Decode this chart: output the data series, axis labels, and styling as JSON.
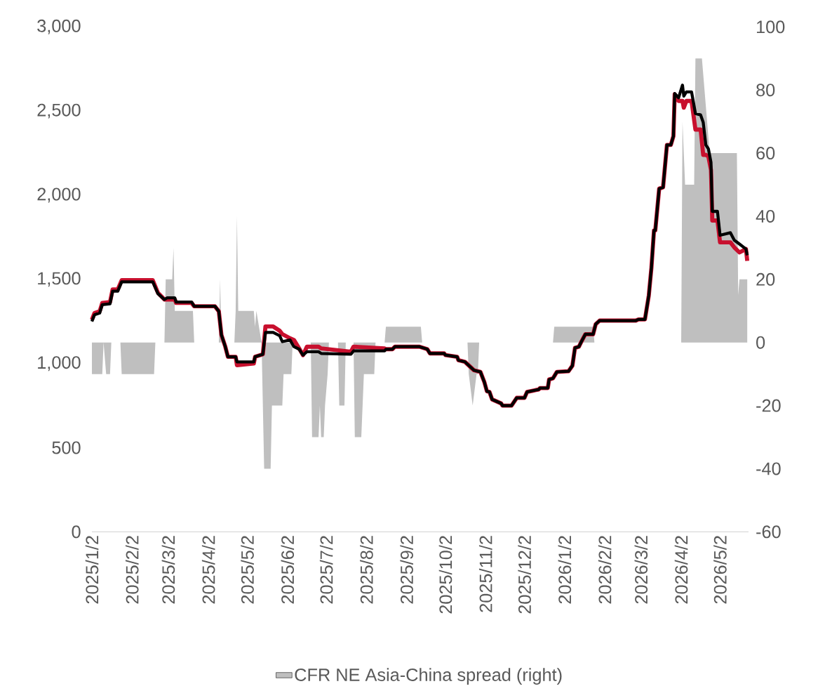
{
  "chart_data": {
    "type": "line",
    "legend": "bottom",
    "xlim": [
      "2025-01-02",
      "2026-05-24"
    ],
    "xticks": [
      {
        "value": "2025-01-02",
        "label": "2025/1/2"
      },
      {
        "value": "2025-02-02",
        "label": "2025/2/2"
      },
      {
        "value": "2025-03-02",
        "label": "2025/3/2"
      },
      {
        "value": "2025-04-02",
        "label": "2025/4/2"
      },
      {
        "value": "2025-05-02",
        "label": "2025/5/2"
      },
      {
        "value": "2025-06-02",
        "label": "2025/6/2"
      },
      {
        "value": "2025-07-02",
        "label": "2025/7/2"
      },
      {
        "value": "2025-08-02",
        "label": "2025/8/2"
      },
      {
        "value": "2025-09-02",
        "label": "2025/9/2"
      },
      {
        "value": "2025-10-02",
        "label": "2025/10/2"
      },
      {
        "value": "2025-11-02",
        "label": "2025/11/2"
      },
      {
        "value": "2025-12-02",
        "label": "2025/12/2"
      },
      {
        "value": "2026-01-02",
        "label": "2026/1/2"
      },
      {
        "value": "2026-02-02",
        "label": "2026/2/2"
      },
      {
        "value": "2026-03-02",
        "label": "2026/3/2"
      },
      {
        "value": "2026-04-02",
        "label": "2026/4/2"
      },
      {
        "value": "2026-05-02",
        "label": "2026/5/2"
      }
    ],
    "ylim": [
      0,
      3000
    ],
    "yticks": [
      0,
      500,
      {
        "value": 1000,
        "label": "1,000"
      },
      {
        "value": 1500,
        "label": "1,500"
      },
      {
        "value": 2000,
        "label": "2,000"
      },
      {
        "value": 2500,
        "label": "2,500"
      },
      {
        "value": 3000,
        "label": "3,000"
      }
    ],
    "y2lim": [
      -60,
      100
    ],
    "y2ticks": [
      -60,
      -40,
      -20,
      0,
      20,
      40,
      60,
      80,
      100
    ],
    "x": [
      "2025-01-02",
      "2025-01-04",
      "2025-01-08",
      "2025-01-10",
      "2025-01-16",
      "2025-01-18",
      "2025-01-22",
      "2025-01-25",
      "2025-02-18",
      "2025-02-22",
      "2025-02-27",
      "2025-03-01",
      "2025-03-07",
      "2025-03-08",
      "2025-03-20",
      "2025-03-22",
      "2025-04-07",
      "2025-04-10",
      "2025-04-12",
      "2025-04-15",
      "2025-04-17",
      "2025-04-23",
      "2025-04-24",
      "2025-05-07",
      "2025-05-08",
      "2025-05-14",
      "2025-05-16",
      "2025-05-22",
      "2025-05-27",
      "2025-05-29",
      "2025-06-04",
      "2025-06-07",
      "2025-06-11",
      "2025-06-14",
      "2025-06-17",
      "2025-06-26",
      "2025-06-28",
      "2025-07-21",
      "2025-07-23",
      "2025-08-16",
      "2025-08-17",
      "2025-08-22",
      "2025-08-24",
      "2025-09-12",
      "2025-09-18",
      "2025-09-20",
      "2025-10-01",
      "2025-10-02",
      "2025-10-11",
      "2025-10-12",
      "2025-10-17",
      "2025-10-24",
      "2025-10-29",
      "2025-11-01",
      "2025-11-03",
      "2025-11-05",
      "2025-11-07",
      "2025-11-14",
      "2025-11-15",
      "2025-11-22",
      "2025-11-26",
      "2025-12-02",
      "2025-12-04",
      "2025-12-13",
      "2025-12-14",
      "2025-12-20",
      "2025-12-21",
      "2025-12-24",
      "2025-12-27",
      "2026-01-05",
      "2026-01-08",
      "2026-01-10",
      "2026-01-13",
      "2026-01-15",
      "2026-01-18",
      "2026-01-24",
      "2026-01-26",
      "2026-01-29",
      "2026-02-26",
      "2026-02-28",
      "2026-03-05",
      "2026-03-08",
      "2026-03-10",
      "2026-03-12",
      "2026-03-13",
      "2026-03-16",
      "2026-03-19",
      "2026-03-22",
      "2026-03-25",
      "2026-03-27",
      "2026-03-28",
      "2026-03-31",
      "2026-04-03",
      "2026-04-04",
      "2026-04-06",
      "2026-04-10",
      "2026-04-13",
      "2026-04-17",
      "2026-04-19",
      "2026-04-21",
      "2026-04-23",
      "2026-04-25",
      "2026-04-26",
      "2026-04-30",
      "2026-05-02",
      "2026-05-10",
      "2026-05-13",
      "2026-05-17",
      "2026-05-22",
      "2026-05-23"
    ],
    "series": [
      {
        "type": "area",
        "axis": "y2",
        "name": "CFR NE Asia-China spread (right)",
        "color": "#bfbfbf",
        "x": [
          "2025-01-02",
          "2025-01-10",
          "2025-01-11",
          "2025-01-13",
          "2025-01-16",
          "2025-01-17",
          "2025-01-24",
          "2025-01-25",
          "2025-02-19",
          "2025-02-20",
          "2025-02-27",
          "2025-02-28",
          "2025-03-05",
          "2025-03-06",
          "2025-03-07",
          "2025-03-21",
          "2025-03-22",
          "2025-04-10",
          "2025-04-11",
          "2025-04-12",
          "2025-04-22",
          "2025-04-23",
          "2025-04-24",
          "2025-04-25",
          "2025-05-07",
          "2025-05-08",
          "2025-05-09",
          "2025-05-13",
          "2025-05-15",
          "2025-05-20",
          "2025-05-21",
          "2025-05-29",
          "2025-05-30",
          "2025-06-05",
          "2025-06-06",
          "2025-06-20",
          "2025-06-21",
          "2025-06-26",
          "2025-06-27",
          "2025-06-28",
          "2025-06-30",
          "2025-07-01",
          "2025-07-03",
          "2025-07-04",
          "2025-07-11",
          "2025-07-12",
          "2025-07-16",
          "2025-07-17",
          "2025-07-23",
          "2025-07-24",
          "2025-07-29",
          "2025-07-30",
          "2025-07-31",
          "2025-08-08",
          "2025-08-09",
          "2025-08-16",
          "2025-08-17",
          "2025-09-13",
          "2025-09-14",
          "2025-10-19",
          "2025-10-20",
          "2025-10-23",
          "2025-10-26",
          "2025-10-27",
          "2025-10-28",
          "2025-12-24",
          "2025-12-25",
          "2026-01-24",
          "2026-01-25",
          "2026-04-02",
          "2026-04-03",
          "2026-04-05",
          "2026-04-12",
          "2026-04-13",
          "2026-04-18",
          "2026-04-24",
          "2026-05-15",
          "2026-05-16",
          "2026-05-17",
          "2026-05-23"
        ],
        "values": [
          -10,
          -10,
          0,
          -10,
          -10,
          0,
          0,
          -10,
          -10,
          0,
          0,
          20,
          20,
          30,
          10,
          10,
          0,
          0,
          20,
          0,
          0,
          10,
          40,
          10,
          10,
          5,
          10,
          0,
          -40,
          -40,
          -20,
          -20,
          -10,
          -10,
          0,
          0,
          -30,
          -30,
          -20,
          -30,
          -30,
          -20,
          -10,
          0,
          0,
          -20,
          -20,
          0,
          0,
          -30,
          -30,
          -20,
          -10,
          -10,
          0,
          0,
          5,
          5,
          0,
          0,
          -10,
          -20,
          -10,
          -10,
          0,
          0,
          5,
          5,
          0,
          0,
          70,
          50,
          50,
          90,
          90,
          60,
          60,
          15,
          20,
          20
        ]
      },
      {
        "color": "#c8102e",
        "values": [
          1260,
          1300,
          1310,
          1360,
          1365,
          1440,
          1440,
          1495,
          1495,
          1420,
          1380,
          1380,
          1380,
          1360,
          1360,
          1340,
          1340,
          1310,
          1170,
          1100,
          1040,
          1040,
          990,
          1000,
          1040,
          1055,
          1220,
          1220,
          1195,
          1175,
          1150,
          1140,
          1090,
          1050,
          1100,
          1100,
          1090,
          1070,
          1100,
          1090,
          1085,
          1085,
          1100,
          1100,
          1085,
          1060,
          1060,
          1050,
          1040,
          1020,
          1010,
          960,
          950,
          890,
          835,
          831,
          787,
          763,
          750,
          750,
          796,
          796,
          831,
          846,
          854,
          854,
          905,
          912,
          950,
          954,
          987,
          1093,
          1100,
          1131,
          1174,
          1174,
          1234,
          1255,
          1255,
          1262,
          1262,
          1405,
          1568,
          1791,
          1791,
          2039,
          2047,
          2299,
          2299,
          2351,
          2600,
          2560,
          2560,
          2520,
          2560,
          2560,
          2390,
          2390,
          2240,
          2240,
          2230,
          2150,
          1850,
          1850,
          1720,
          1720,
          1690,
          1660,
          1680,
          1610
        ]
      },
      {
        "color": "#000000",
        "values": [
          1250,
          1290,
          1300,
          1350,
          1355,
          1430,
          1430,
          1485,
          1485,
          1415,
          1380,
          1390,
          1390,
          1365,
          1365,
          1340,
          1340,
          1310,
          1170,
          1100,
          1040,
          1040,
          1010,
          1010,
          1040,
          1055,
          1185,
          1185,
          1165,
          1130,
          1140,
          1100,
          1085,
          1050,
          1070,
          1070,
          1060,
          1055,
          1075,
          1075,
          1085,
          1085,
          1100,
          1100,
          1085,
          1060,
          1060,
          1050,
          1040,
          1020,
          1010,
          960,
          950,
          890,
          835,
          831,
          787,
          763,
          750,
          750,
          796,
          796,
          831,
          846,
          854,
          854,
          905,
          912,
          950,
          954,
          987,
          1093,
          1100,
          1131,
          1174,
          1174,
          1234,
          1255,
          1255,
          1262,
          1262,
          1405,
          1568,
          1791,
          1791,
          2039,
          2047,
          2299,
          2299,
          2351,
          2604,
          2579,
          2654,
          2589,
          2614,
          2614,
          2485,
          2477,
          2433,
          2299,
          2276,
          2195,
          1904,
          1904,
          1762,
          1777,
          1733,
          1710,
          1680,
          1643
        ]
      }
    ]
  }
}
